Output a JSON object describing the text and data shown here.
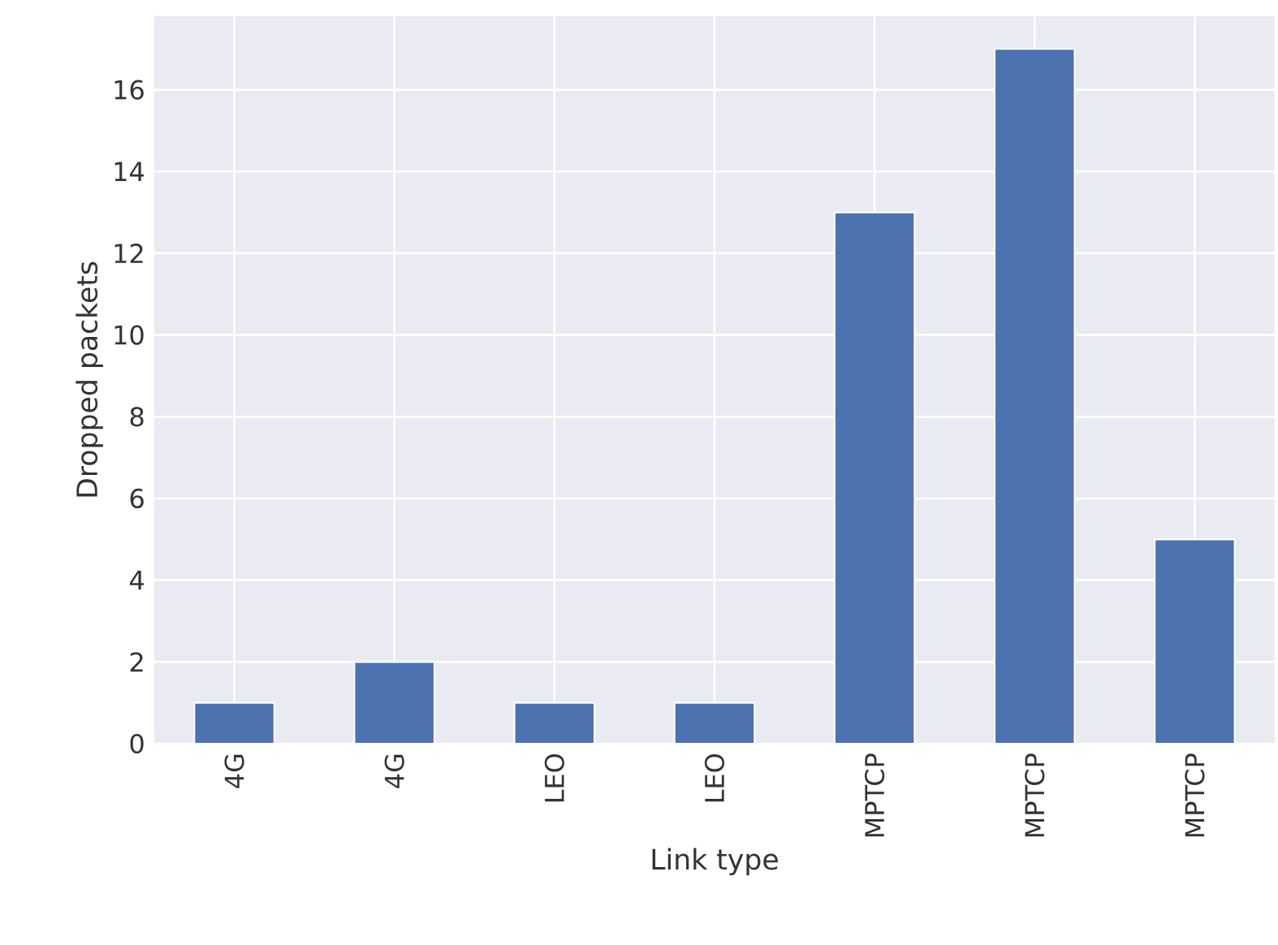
{
  "chart_data": {
    "type": "bar",
    "xlabel": "Link type",
    "ylabel": "Dropped packets",
    "categories": [
      "4G",
      "4G",
      "LEO",
      "LEO",
      "MPTCP",
      "MPTCP",
      "MPTCP"
    ],
    "values": [
      1,
      2,
      1,
      1,
      13,
      17,
      5
    ],
    "color": "#4c72b0",
    "ylim": [
      0,
      17.8
    ],
    "yticks": [
      0,
      2,
      4,
      6,
      8,
      10,
      12,
      14,
      16
    ],
    "grid": true
  }
}
